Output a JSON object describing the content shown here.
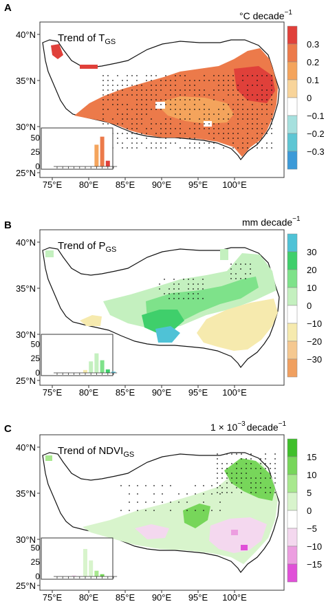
{
  "panels": [
    {
      "letter": "A",
      "title_main": "Trend of T",
      "title_sub": "GS",
      "unit_main": "°C decade",
      "unit_sup": "−1",
      "colorbar_labels": [
        "0.3",
        "0.2",
        "0.1",
        "0",
        "−0.1",
        "−0.2",
        "−0.3"
      ],
      "colorbar_colors": [
        "#e0403a",
        "#ec7a4a",
        "#f4a45c",
        "#f8d49a",
        "#ffffff",
        "#a6e0de",
        "#5ec6d4",
        "#3c9ad8"
      ],
      "lat_labels": [
        "40°N",
        "35°N",
        "30°N",
        "25°N"
      ],
      "lon_labels": [
        "75°E",
        "80°E",
        "85°E",
        "90°E",
        "95°E",
        "100°E"
      ],
      "inset_y_labels": [
        "50",
        "25",
        "0"
      ],
      "inset_bars": [
        0,
        0,
        0,
        0,
        0,
        0,
        0,
        38,
        52,
        10,
        0
      ],
      "inset_bar_colors": [
        "#3c9ad8",
        "#5ec6d4",
        "#a6e0de",
        "#ffffff",
        "#ffffff",
        "#f8d49a",
        "#f8d49a",
        "#f4a45c",
        "#ec7a4a",
        "#e0403a",
        "#e0403a"
      ]
    },
    {
      "letter": "B",
      "title_main": "Trend of P",
      "title_sub": "GS",
      "unit_main": "mm decade",
      "unit_sup": "−1",
      "colorbar_labels": [
        "30",
        "20",
        "10",
        "0",
        "−10",
        "−20",
        "−30"
      ],
      "colorbar_colors": [
        "#4fc2d6",
        "#3fcf6b",
        "#7ee28a",
        "#c4f0bf",
        "#ffffff",
        "#f6eaae",
        "#f5c890",
        "#f0a060"
      ],
      "lat_labels": [
        "40°N",
        "35°N",
        "30°N",
        "25°N"
      ],
      "lon_labels": [
        "75°E",
        "80°E",
        "85°E",
        "90°E",
        "95°E",
        "100°E"
      ],
      "inset_y_labels": [
        "50",
        "25",
        "0"
      ],
      "inset_bars": [
        0,
        0,
        0,
        0,
        0,
        5,
        20,
        34,
        22,
        6,
        2
      ],
      "inset_bar_colors": [
        "#f0a060",
        "#f5c890",
        "#f6eaae",
        "#ffffff",
        "#ffffff",
        "#f6eaae",
        "#c4f0bf",
        "#c4f0bf",
        "#7ee28a",
        "#3fcf6b",
        "#4fc2d6"
      ]
    },
    {
      "letter": "C",
      "title_main": "Trend of NDVI",
      "title_sub": "GS",
      "unit_main": "1 × 10",
      "unit_sup": "−3",
      "unit_tail": "decade",
      "unit_tail_sup": "−1",
      "colorbar_labels": [
        "15",
        "10",
        "5",
        "0",
        "−5",
        "−10",
        "−15"
      ],
      "colorbar_colors": [
        "#3fbf2a",
        "#77d65a",
        "#a8e88e",
        "#d8f4cc",
        "#ffffff",
        "#f4d8ef",
        "#ec9ee0",
        "#e050d8"
      ],
      "lat_labels": [
        "40°N",
        "35°N",
        "30°N",
        "25°N"
      ],
      "lon_labels": [
        "75°E",
        "80°E",
        "85°E",
        "90°E",
        "95°E",
        "100°E"
      ],
      "inset_y_labels": [
        "50",
        "25",
        "0"
      ],
      "inset_bars": [
        0,
        0,
        0,
        2,
        14,
        48,
        28,
        10,
        4,
        0,
        0
      ],
      "inset_bar_colors": [
        "#e050d8",
        "#ec9ee0",
        "#f4d8ef",
        "#f4d8ef",
        "#ffffff",
        "#d8f4cc",
        "#d8f4cc",
        "#a8e88e",
        "#77d65a",
        "#3fbf2a",
        "#3fbf2a"
      ]
    }
  ]
}
